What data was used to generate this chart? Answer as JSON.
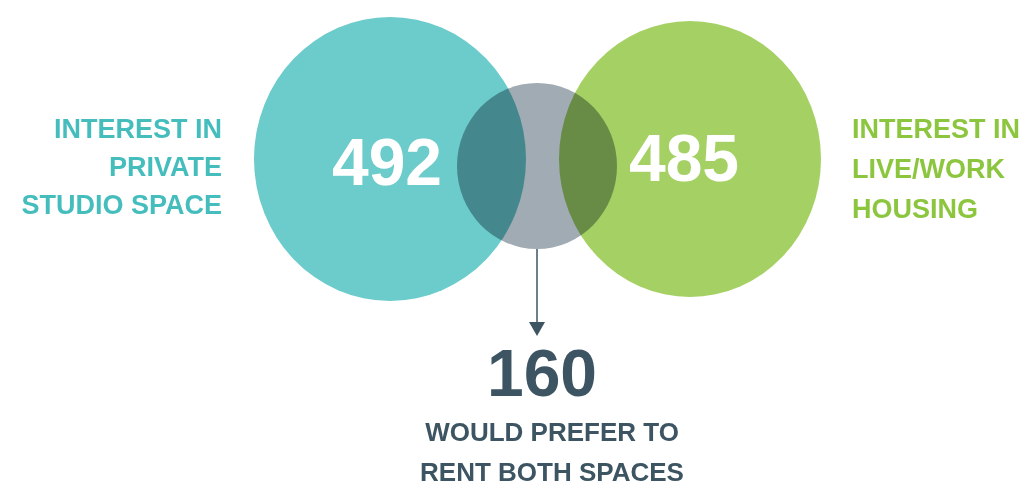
{
  "chart_data": {
    "type": "other",
    "categories": [
      "INTEREST IN\nPRIVATE\nSTUDIO SPACE",
      "INTEREST IN\nLIVE/WORK\nHOUSING",
      "WOULD PREFER TO\nRENT BOTH SPACES"
    ],
    "values": [
      492,
      485,
      160
    ],
    "colors": [
      "#6ccbcb",
      "#a5d164",
      "#a0abb3"
    ],
    "data_labels": true
  }
}
